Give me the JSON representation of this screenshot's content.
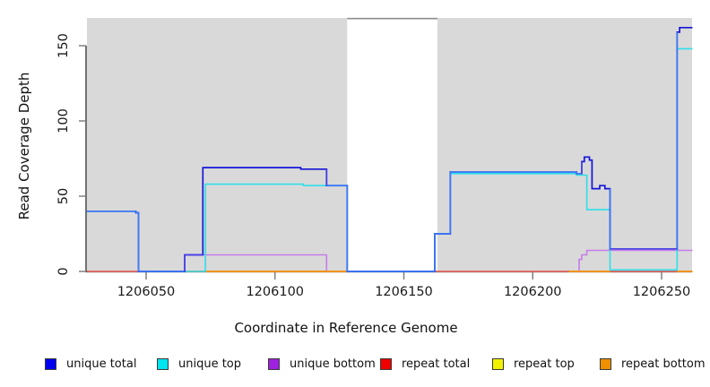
{
  "chart_data": {
    "type": "line",
    "subtype": "step-coverage",
    "title": "",
    "xlabel": "Coordinate in Reference Genome",
    "ylabel": "Read Coverage Depth",
    "xlim": [
      1206027,
      1206262
    ],
    "ylim": [
      0,
      168
    ],
    "x_ticks": [
      1206050,
      1206100,
      1206150,
      1206200,
      1206250
    ],
    "y_ticks": [
      0,
      50,
      100,
      150
    ],
    "grid": false,
    "plot_background": "#d9d9d9",
    "page_background": "#ffffff",
    "highlight_band": {
      "x1": 1206128,
      "x2": 1206163,
      "color": "#ffffff",
      "top_border": "#8c8c8c"
    },
    "series": [
      {
        "name": "unique total",
        "color": "#1616d9",
        "color_over_top": "#3d7bf5",
        "color_over_bottom": "#4b43e6",
        "steps": [
          [
            1206027,
            40
          ],
          [
            1206046,
            39
          ],
          [
            1206047,
            0
          ],
          [
            1206065,
            11
          ],
          [
            1206072,
            69
          ],
          [
            1206110,
            68
          ],
          [
            1206120,
            57
          ],
          [
            1206128,
            0
          ],
          [
            1206162,
            25
          ],
          [
            1206168,
            66
          ],
          [
            1206217,
            65
          ],
          [
            1206219,
            73
          ],
          [
            1206220,
            76
          ],
          [
            1206222,
            74
          ],
          [
            1206223,
            55
          ],
          [
            1206226,
            57
          ],
          [
            1206228,
            55
          ],
          [
            1206230,
            15
          ],
          [
            1206256,
            159
          ],
          [
            1206257,
            162
          ]
        ]
      },
      {
        "name": "unique top",
        "color": "#2edfe9",
        "steps": [
          [
            1206027,
            40
          ],
          [
            1206046,
            39
          ],
          [
            1206047,
            0
          ],
          [
            1206073,
            58
          ],
          [
            1206111,
            57
          ],
          [
            1206128,
            0
          ],
          [
            1206162,
            25
          ],
          [
            1206168,
            65
          ],
          [
            1206217,
            64
          ],
          [
            1206221,
            41
          ],
          [
            1206230,
            1
          ],
          [
            1206256,
            148
          ]
        ]
      },
      {
        "name": "unique bottom",
        "color": "#c77ce8",
        "steps": [
          [
            1206027,
            0
          ],
          [
            1206065,
            11
          ],
          [
            1206120,
            0
          ],
          [
            1206218,
            8
          ],
          [
            1206219,
            11
          ],
          [
            1206221,
            14
          ]
        ]
      },
      {
        "name": "repeat total",
        "color": "#e0506a",
        "steps": [
          [
            1206027,
            0
          ]
        ]
      },
      {
        "name": "repeat top",
        "color": "#f2f200",
        "steps": [
          [
            1206027,
            0
          ]
        ]
      },
      {
        "name": "repeat bottom",
        "color": "#f79612",
        "steps": [
          [
            1206027,
            0
          ]
        ],
        "visible_segments": [
          [
            1206073,
            1206128
          ],
          [
            1206214,
            1206230
          ],
          [
            1206256,
            1206262
          ]
        ]
      }
    ],
    "legend": [
      {
        "label": "unique total",
        "color": "#0000f0"
      },
      {
        "label": "unique top",
        "color": "#00e5ee"
      },
      {
        "label": "unique bottom",
        "color": "#a020e0"
      },
      {
        "label": "repeat total",
        "color": "#ee0000"
      },
      {
        "label": "repeat top",
        "color": "#f2f200"
      },
      {
        "label": "repeat bottom",
        "color": "#f09000"
      }
    ],
    "legend_position": "bottom",
    "axis_color": "#262626",
    "tick_color": "#787878",
    "tick_label_color": "#1a1a1a"
  }
}
